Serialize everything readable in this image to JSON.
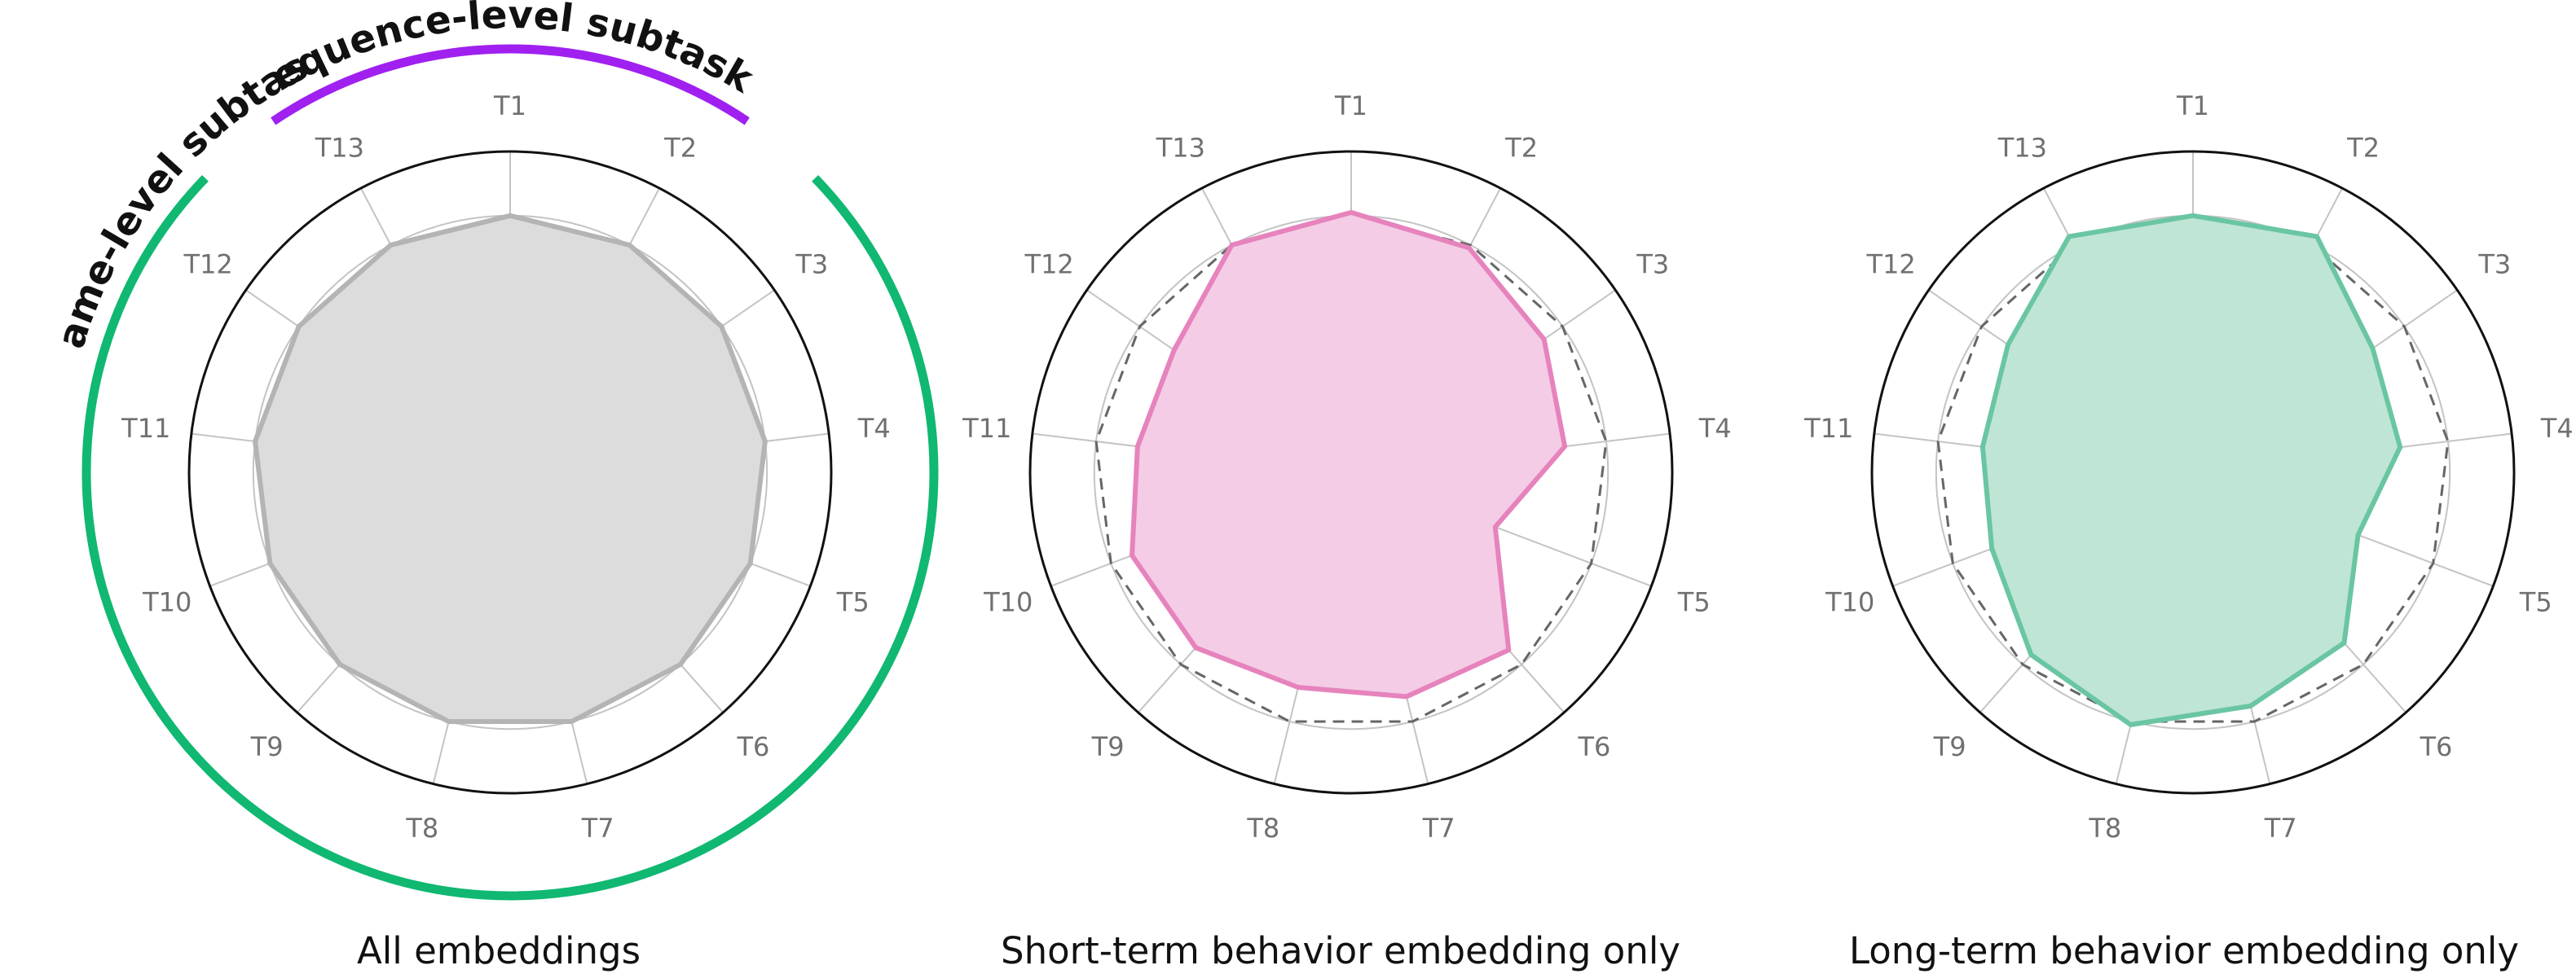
{
  "chart_data": [
    {
      "type": "radar",
      "title": "All embeddings",
      "categories": [
        "T1",
        "T2",
        "T3",
        "T4",
        "T5",
        "T6",
        "T7",
        "T8",
        "T9",
        "T10",
        "T11",
        "T12",
        "T13"
      ],
      "rlim": [
        0,
        1
      ],
      "grid": true,
      "series": [
        {
          "values": [
            0.8,
            0.8,
            0.8,
            0.8,
            0.8,
            0.8,
            0.8,
            0.8,
            0.8,
            0.8,
            0.8,
            0.8,
            0.8
          ],
          "color": "#b4b4b4",
          "fill": "#dcdcdc",
          "style": "solid"
        }
      ],
      "arc_annotations": [
        {
          "label": "Sequence-level subtasks",
          "color": "#a020f0"
        },
        {
          "label": "Frame-level subtasks",
          "color": "#10b872"
        }
      ]
    },
    {
      "type": "radar",
      "title": "Short-term behavior embedding only",
      "categories": [
        "T1",
        "T2",
        "T3",
        "T4",
        "T5",
        "T6",
        "T7",
        "T8",
        "T9",
        "T10",
        "T11",
        "T12",
        "T13"
      ],
      "rlim": [
        0,
        1
      ],
      "grid": true,
      "series": [
        {
          "values": [
            0.8,
            0.8,
            0.8,
            0.8,
            0.8,
            0.8,
            0.8,
            0.8,
            0.8,
            0.8,
            0.8,
            0.8,
            0.8
          ],
          "color": "#666666",
          "fill": "none",
          "style": "dashed"
        },
        {
          "values": [
            0.81,
            0.79,
            0.73,
            0.67,
            0.48,
            0.74,
            0.72,
            0.69,
            0.73,
            0.73,
            0.67,
            0.67,
            0.8
          ],
          "color": "#e683bd",
          "fill": "#f4cce6",
          "style": "solid"
        }
      ]
    },
    {
      "type": "radar",
      "title": "Long-term behavior embedding only",
      "categories": [
        "T1",
        "T2",
        "T3",
        "T4",
        "T5",
        "T6",
        "T7",
        "T8",
        "T9",
        "T10",
        "T11",
        "T12",
        "T13"
      ],
      "rlim": [
        0,
        1
      ],
      "grid": true,
      "series": [
        {
          "values": [
            0.8,
            0.8,
            0.8,
            0.8,
            0.8,
            0.8,
            0.8,
            0.8,
            0.8,
            0.8,
            0.8,
            0.8,
            0.8
          ],
          "color": "#666666",
          "fill": "none",
          "style": "dashed"
        },
        {
          "values": [
            0.8,
            0.83,
            0.68,
            0.65,
            0.55,
            0.71,
            0.75,
            0.81,
            0.76,
            0.67,
            0.66,
            0.7,
            0.83
          ],
          "color": "#6ac6a2",
          "fill": "#bfe5d5",
          "style": "solid"
        }
      ]
    }
  ]
}
